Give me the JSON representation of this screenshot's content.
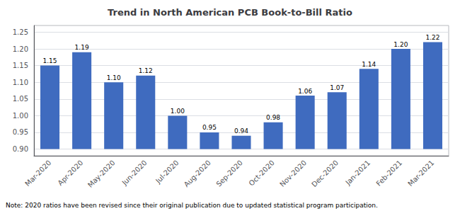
{
  "chart_data": {
    "type": "bar",
    "title": "Trend in North American PCB Book-to-Bill Ratio",
    "categories": [
      "Mar-2020",
      "Apr-2020",
      "May-2020",
      "Jun-2020",
      "Jul-2020",
      "Aug-2020",
      "Sep-2020",
      "Oct-2020",
      "Nov-2020",
      "Dec-2020",
      "Jan-2021",
      "Feb-2021",
      "Mar-2021"
    ],
    "values": [
      1.15,
      1.19,
      1.1,
      1.12,
      1.0,
      0.95,
      0.94,
      0.98,
      1.06,
      1.07,
      1.14,
      1.2,
      1.22
    ],
    "value_labels": [
      "1.15",
      "1.19",
      "1.10",
      "1.12",
      "1.00",
      "0.95",
      "0.94",
      "0.98",
      "1.06",
      "1.07",
      "1.14",
      "1.20",
      "1.22"
    ],
    "bar_bottom": 0.9,
    "color": "#3f6bbf",
    "ylim": [
      0.88,
      1.27
    ],
    "yticks": [
      {
        "value": 0.9,
        "label": "0.90"
      },
      {
        "value": 0.95,
        "label": "0.95"
      },
      {
        "value": 1.0,
        "label": "1.00"
      },
      {
        "value": 1.05,
        "label": "1.05"
      },
      {
        "value": 1.1,
        "label": "1.10"
      },
      {
        "value": 1.15,
        "label": "1.15"
      },
      {
        "value": 1.2,
        "label": "1.20"
      },
      {
        "value": 1.25,
        "label": "1.25"
      }
    ],
    "grid": true,
    "data_labels": true,
    "note": "Note: 2020 ratios have been revised since their original publication due to updated statistical program participation."
  }
}
